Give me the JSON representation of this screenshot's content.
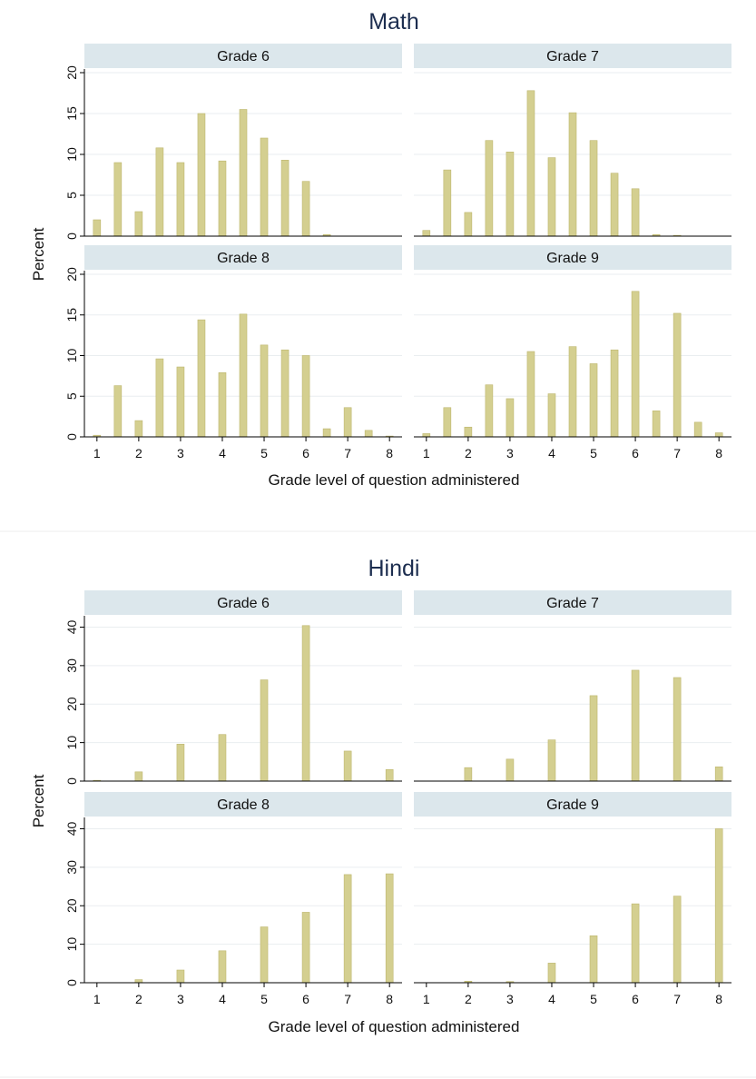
{
  "colors": {
    "bar": "#d4cf90",
    "bar_edge": "#bdb66d",
    "strip": "#dce7ec",
    "grid": "#eaeef0",
    "title": "#1c2d4f",
    "divider": "#eeeeee"
  },
  "chart_data": [
    {
      "type": "bar",
      "title": "Math",
      "xlabel": "Grade level of question administered",
      "ylabel": "Percent",
      "xlim": [
        0.7,
        8.3
      ],
      "xticks": [
        1,
        2,
        3,
        4,
        5,
        6,
        7,
        8
      ],
      "ylim": [
        0,
        20
      ],
      "yticks": [
        0,
        5,
        10,
        15,
        20
      ],
      "grid": true,
      "panels": [
        {
          "label": "Grade 6",
          "x": [
            1,
            1.5,
            2,
            2.5,
            3,
            3.5,
            4,
            4.5,
            5,
            5.5,
            6,
            6.5
          ],
          "values": [
            2.0,
            9.0,
            3.0,
            10.8,
            9.0,
            15.0,
            9.2,
            15.5,
            12.0,
            9.3,
            6.7,
            0.2
          ]
        },
        {
          "label": "Grade 7",
          "x": [
            1,
            1.5,
            2,
            2.5,
            3,
            3.5,
            4,
            4.5,
            5,
            5.5,
            6,
            6.5,
            7
          ],
          "values": [
            0.7,
            8.1,
            2.9,
            11.7,
            10.3,
            17.8,
            9.6,
            15.1,
            11.7,
            7.7,
            5.8,
            0.2,
            0.1
          ]
        },
        {
          "label": "Grade 8",
          "x": [
            1,
            1.5,
            2,
            2.5,
            3,
            3.5,
            4,
            4.5,
            5,
            5.5,
            6,
            6.5,
            7,
            7.5,
            8
          ],
          "values": [
            0.2,
            6.3,
            2.0,
            9.6,
            8.6,
            14.4,
            7.9,
            15.1,
            11.3,
            10.7,
            10.0,
            1.0,
            3.6,
            0.8,
            0.1
          ]
        },
        {
          "label": "Grade 9",
          "x": [
            1,
            1.5,
            2,
            2.5,
            3,
            3.5,
            4,
            4.5,
            5,
            5.5,
            6,
            6.5,
            7,
            7.5,
            8
          ],
          "values": [
            0.4,
            3.6,
            1.2,
            6.4,
            4.7,
            10.5,
            5.3,
            11.1,
            9.0,
            10.7,
            17.9,
            3.2,
            15.2,
            1.8,
            0.5
          ]
        }
      ]
    },
    {
      "type": "bar",
      "title": "Hindi",
      "xlabel": "Grade level of question administered",
      "ylabel": "Percent",
      "xlim": [
        0.7,
        8.3
      ],
      "xticks": [
        1,
        2,
        3,
        4,
        5,
        6,
        7,
        8
      ],
      "ylim": [
        0,
        42
      ],
      "yticks": [
        0,
        10,
        20,
        30,
        40
      ],
      "grid": true,
      "panels": [
        {
          "label": "Grade 6",
          "x": [
            1,
            2,
            3,
            4,
            5,
            6,
            7,
            8
          ],
          "values": [
            0.2,
            2.4,
            9.6,
            12.1,
            26.3,
            40.4,
            7.8,
            3.0
          ]
        },
        {
          "label": "Grade 7",
          "x": [
            2,
            3,
            4,
            5,
            6,
            7,
            8
          ],
          "values": [
            3.5,
            5.7,
            10.7,
            22.2,
            28.8,
            26.9,
            3.7
          ]
        },
        {
          "label": "Grade 8",
          "x": [
            2,
            3,
            4,
            5,
            6,
            7,
            8
          ],
          "values": [
            0.8,
            3.3,
            8.3,
            14.5,
            18.3,
            28.1,
            28.3
          ]
        },
        {
          "label": "Grade 9",
          "x": [
            2,
            3,
            4,
            5,
            6,
            7,
            8
          ],
          "values": [
            0.4,
            0.3,
            5.1,
            12.2,
            20.5,
            22.5,
            40.0
          ]
        }
      ]
    }
  ]
}
